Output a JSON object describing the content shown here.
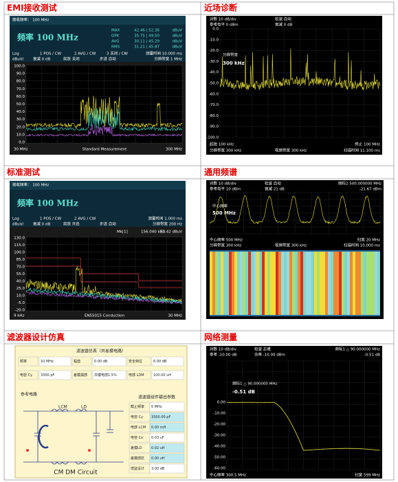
{
  "panels": [
    {
      "title": "EMI接收测试",
      "top": "接收频率： 100 MHz",
      "freq": "频率 100 MHz",
      "readings": [
        [
          "MAX",
          "42.46 | 52.36",
          "dBuV"
        ],
        [
          "QPK",
          "35.75 | 49.50",
          "dBuV"
        ],
        [
          "AVG",
          "30.11 | 45.29",
          "dBuV"
        ],
        [
          "RMS",
          "31.21 | 45.87",
          "dBuV"
        ]
      ],
      "status": [
        "Log",
        "1 POS / CW",
        "2 AVG / CW",
        "3 关闭 / CW",
        "测量时间 10.000 ms",
        "dBuV/",
        "衰减 0 dB",
        "前放 关闭",
        "步进 自动",
        "分辨带宽 1 MHz"
      ],
      "y_labels": [
        "100.0",
        "90.0",
        "80.0",
        "70.0",
        "60.0",
        "50.0",
        "40.0",
        "30.0",
        "20.0",
        "10.0",
        "0.0"
      ],
      "bottom": [
        "30 MHz",
        "Standard Measurement",
        "300 MHz"
      ]
    },
    {
      "title": "近场诊断",
      "status": [
        "对数 10 dB/div",
        "检波 自动",
        "参考电平 0 dBm",
        "衰减 0 dB"
      ],
      "marker": [
        "分辨带宽",
        "300 kHz"
      ],
      "y_labels": [
        "0.0",
        "-10.0",
        "-20.0",
        "-30.0",
        "-40.0",
        "-50.0",
        "-60.0",
        "-70.0",
        "-80.0",
        "-90.0",
        "-100.0"
      ],
      "bottom": [
        "起始 100 kHz",
        "终止 100 MHz",
        "分辨带宽 300 kHz",
        "视频带宽 300 kHz",
        "扫描时间 11.100 ms"
      ]
    },
    {
      "title": "标准测试",
      "top": "接收频率： 100 MHz",
      "freq": "频率 100 MHz",
      "readings": [
        [
          "MAX",
          "0.24 | 2.58",
          "dBuV"
        ],
        [
          "QPK",
          "-2.30 | -2.13",
          "dBuV"
        ],
        [
          "AVG",
          "-9.94 | -9.60",
          "dBuV"
        ],
        [
          "RMS",
          "-8.82 | -8.54",
          "dBuV"
        ]
      ],
      "status": [
        "Log",
        "1 POS / CW",
        "2 AVG / CW",
        "测量时间 1.000 ms",
        "dBuV/",
        "衰减 0 dB",
        "前放 开启",
        "步进 自动",
        "分辨带宽 200 Hz"
      ],
      "mk": [
        "Mk[1]",
        "156.040 kHz",
        "13.42 dBuV"
      ],
      "y_labels": [
        "130.0",
        "115.0",
        "100.0",
        "85.0",
        "70.0",
        "55.0",
        "40.0",
        "25.0",
        "10.0",
        "-5.0",
        "-20.0"
      ],
      "bottom": [
        "9 kHz",
        "EN55015 Conduction",
        "30 MHz"
      ]
    },
    {
      "title": "通用频谱",
      "status": [
        "对数 10 dB/div",
        "检波 自动",
        "频标2 500.000000 MHz",
        "参考电平 10 dBm",
        "衰减 21 dB",
        "-21.67 dBm"
      ],
      "marker": [
        "中心频率",
        "500 MHz"
      ],
      "bottom": [
        "中心频率 500 MHz",
        "扫宽 20 MHz",
        "分辨带宽 300 kHz",
        "视频带宽 300 kHz",
        "扫描时间 10.000 ms"
      ]
    },
    {
      "title": "滤波器设计仿真",
      "heading": "滤波器仿真（共差模电路）",
      "inputs": [
        [
          "频率",
          "10 MHz",
          "幅值",
          "0.00 dB",
          "安全档位",
          "6.00 dB"
        ],
        [
          "电容 Cy",
          "3300 pF",
          "差模漏感",
          "共模电感1.5%",
          "电感 LDM",
          "100.00 uH"
        ]
      ],
      "circuit_title": "参考电路",
      "output_title": "滤波器组件输出参数",
      "outputs": [
        [
          "截止频率",
          "5 MHz"
        ],
        [
          "电容 Cy",
          "3300.00 pF"
        ],
        [
          "电感 LCM",
          "0.00 mH"
        ],
        [
          "电容 Cx",
          "0.03 uF"
        ],
        [
          "差模LD",
          "0.02 uH"
        ],
        [
          "差模感抗",
          "0.00 uH"
        ],
        [
          "增益设计",
          "3.00 dB"
        ]
      ],
      "circuit_labels": [
        "LCM",
        "LD",
        "CM DM Circuit"
      ]
    },
    {
      "title": "网络测量",
      "status": [
        "对数 10 dB/div",
        "检波 正峰",
        "频标1 △ 90.000000 MHz",
        "参考 -10.00 dB",
        "功率 -10.00 dBm",
        "-0.51 dB"
      ],
      "marker": [
        "频标1 △ 90.000000 MHz",
        "-0.51 dB"
      ],
      "y_labels": [
        "0.00",
        "-10.00",
        "-20.00",
        "-30.00",
        "-40.00",
        "-50.00",
        "-60.00"
      ],
      "bottom": [
        "中心频率 300.5 MHz",
        "扫宽 599 MHz"
      ]
    }
  ]
}
